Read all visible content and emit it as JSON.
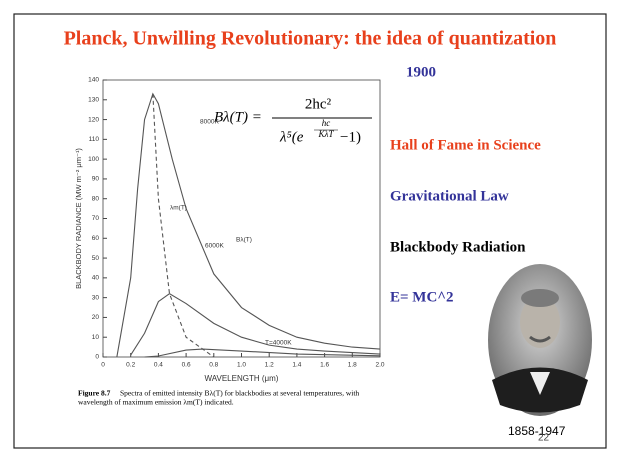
{
  "slide": {
    "title": "Planck, Unwilling Revolutionary: the idea of quantization",
    "year": "1900",
    "formula": {
      "lhs": "Bλ(T) =",
      "numerator": "2hc²",
      "denominator": "λ⁵(e",
      "exp_numerator": "hc",
      "exp_denominator": "KλT",
      "tail": "−1)"
    },
    "items": [
      "Hall of Fame in Science",
      "Gravitational Law",
      "Blackbody Radiation",
      "E= MC^2"
    ],
    "lifespan": "1858-1947",
    "page_number": "22",
    "caption": {
      "label": "Figure 8.7",
      "lines": [
        "Spectra of emitted intensity Bλ(T) for blackbodies at several temperatures, with",
        "wavelength of maximum emission λm(T) indicated."
      ]
    }
  },
  "chart_data": {
    "type": "line",
    "x_label": "WAVELENGTH (μm)",
    "y_label": "BLACKBODY RADIANCE (MW m⁻² μm⁻¹)",
    "xlim": [
      0,
      2
    ],
    "ylim": [
      0,
      140
    ],
    "xticks": [
      0,
      0.2,
      0.4,
      0.6,
      0.8,
      {
        "value": 1,
        "label": "1.0"
      },
      1.2,
      1.4,
      1.6,
      1.8,
      {
        "value": 2,
        "label": "2.0"
      }
    ],
    "yticks": [
      0,
      10,
      20,
      30,
      40,
      50,
      60,
      70,
      80,
      90,
      100,
      110,
      120,
      130,
      140
    ],
    "series": [
      {
        "name": "8000K",
        "color": "#555555",
        "dashed": false,
        "x": [
          0.1,
          0.2,
          0.25,
          0.3,
          0.36,
          0.4,
          0.5,
          0.6,
          0.8,
          1.0,
          1.2,
          1.4,
          1.6,
          1.8,
          2.0
        ],
        "values": [
          0,
          40,
          85,
          120,
          133,
          128,
          100,
          75,
          42,
          25,
          16,
          10,
          7,
          5,
          4
        ]
      },
      {
        "name": "6000K",
        "color": "#555555",
        "dashed": false,
        "x": [
          0.2,
          0.3,
          0.4,
          0.48,
          0.6,
          0.8,
          1.0,
          1.2,
          1.4,
          1.6,
          2.0
        ],
        "values": [
          1,
          12,
          28,
          32,
          27,
          17,
          10,
          6,
          4,
          3,
          1.5
        ]
      },
      {
        "name": "T=4000K",
        "color": "#555555",
        "dashed": false,
        "x": [
          0.3,
          0.4,
          0.6,
          0.72,
          1.0,
          1.4,
          2.0
        ],
        "values": [
          0,
          0.5,
          3.5,
          4,
          3,
          1.5,
          0.6
        ]
      },
      {
        "name": "λm(T)",
        "color": "#555555",
        "dashed": true,
        "x": [
          0.36,
          0.4,
          0.48,
          0.6,
          0.72,
          0.8
        ],
        "values": [
          133,
          80,
          32,
          10,
          4,
          0
        ]
      }
    ],
    "curve_label": "Bλ(T)"
  }
}
